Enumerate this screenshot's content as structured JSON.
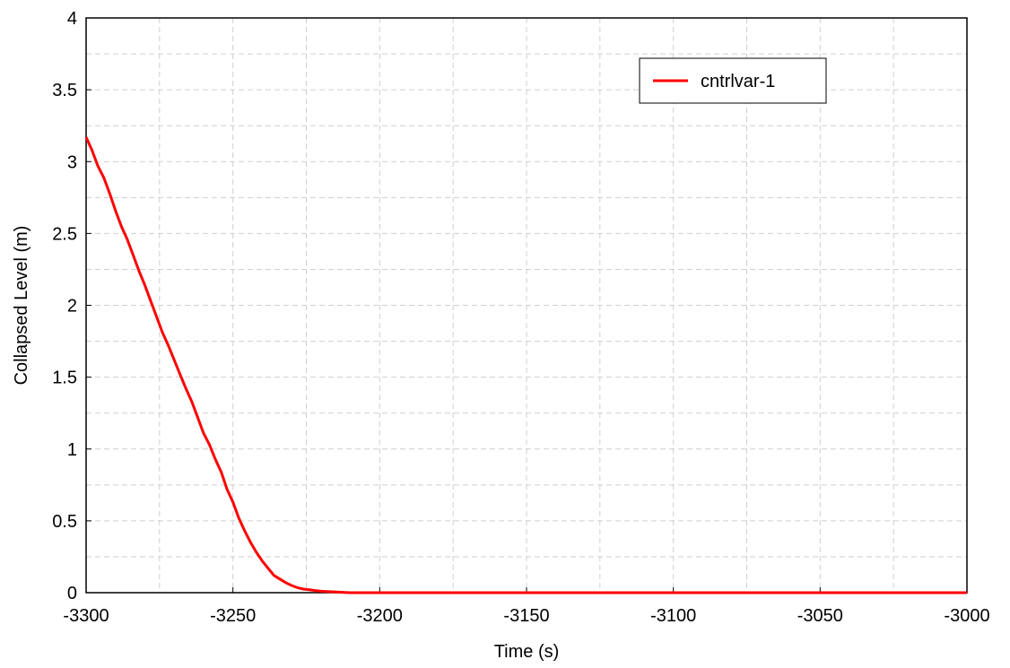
{
  "chart_data": {
    "type": "line",
    "title": "",
    "xlabel": "Time (s)",
    "ylabel": "Collapsed Level (m)",
    "xlim": [
      -3300,
      -3000
    ],
    "ylim": [
      0,
      4
    ],
    "x_ticks": [
      -3300,
      -3250,
      -3200,
      -3150,
      -3100,
      -3050,
      -3000
    ],
    "x_tick_labels": [
      "-3300",
      "-3250",
      "-3200",
      "-3150",
      "-3100",
      "-3050",
      "-3000"
    ],
    "y_ticks": [
      0,
      0.5,
      1,
      1.5,
      2,
      2.5,
      3,
      3.5,
      4
    ],
    "y_tick_labels": [
      "0",
      "0.5",
      "1",
      "1.5",
      "2",
      "2.5",
      "3",
      "3.5",
      "4"
    ],
    "grid": true,
    "legend_position": "top-right",
    "series": [
      {
        "name": "cntrlvar-1",
        "color": "#ff0000",
        "x": [
          -3300,
          -3298,
          -3296,
          -3294,
          -3292,
          -3290,
          -3288,
          -3286,
          -3284,
          -3282,
          -3280,
          -3278,
          -3276,
          -3274,
          -3272,
          -3270,
          -3268,
          -3266,
          -3264,
          -3262,
          -3260,
          -3258,
          -3256,
          -3254,
          -3252,
          -3250,
          -3248,
          -3246,
          -3244,
          -3242,
          -3240,
          -3238,
          -3236,
          -3234,
          -3232,
          -3230,
          -3228,
          -3226,
          -3224,
          -3222,
          -3220,
          -3218,
          -3216,
          -3214,
          -3212,
          -3210,
          -3200,
          -3150,
          -3100,
          -3050,
          -3000
        ],
        "y": [
          3.17,
          3.08,
          2.97,
          2.89,
          2.78,
          2.66,
          2.55,
          2.46,
          2.35,
          2.24,
          2.14,
          2.03,
          1.92,
          1.81,
          1.72,
          1.62,
          1.52,
          1.42,
          1.33,
          1.22,
          1.11,
          1.03,
          0.93,
          0.84,
          0.72,
          0.63,
          0.52,
          0.43,
          0.35,
          0.28,
          0.22,
          0.17,
          0.12,
          0.095,
          0.07,
          0.05,
          0.035,
          0.025,
          0.02,
          0.015,
          0.01,
          0.008,
          0.006,
          0.004,
          0.002,
          0.0,
          0.0,
          0.0,
          0.0,
          0.0,
          0.0
        ]
      }
    ]
  }
}
